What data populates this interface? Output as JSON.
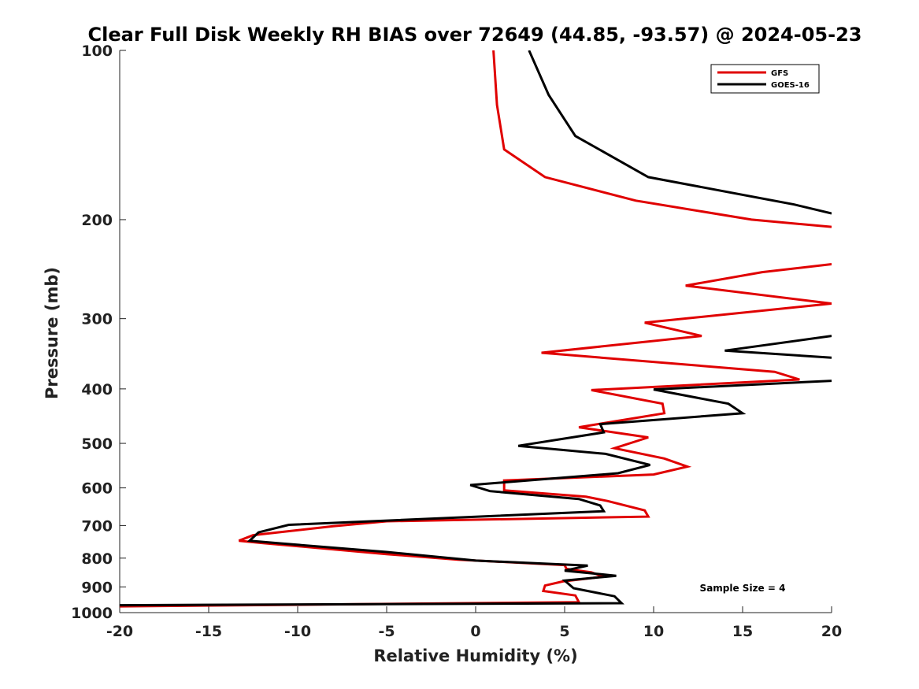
{
  "chart_data": {
    "type": "line",
    "title": "Clear Full Disk Weekly RH BIAS over 72649 (44.85, -93.57) @ 2024-05-23",
    "xlabel": "Relative Humidity (%)",
    "ylabel": "Pressure (mb)",
    "xlim": [
      -20,
      20
    ],
    "ylim": [
      100,
      1000
    ],
    "y_scale": "log",
    "y_reversed": true,
    "grid": false,
    "legend_position": "top-right",
    "x_ticks": [
      -20,
      -15,
      -10,
      -5,
      0,
      5,
      10,
      15,
      20
    ],
    "x_tick_labels": [
      "-20",
      "-15",
      "-10",
      "-5",
      "0",
      "5",
      "10",
      "15",
      "20"
    ],
    "y_ticks": [
      100,
      200,
      300,
      400,
      500,
      600,
      700,
      800,
      900,
      1000
    ],
    "y_tick_labels": [
      "100",
      "200",
      "300",
      "400",
      "500",
      "600",
      "700",
      "800",
      "900",
      "1000"
    ],
    "annotation": "Sample Size = 4",
    "series": [
      {
        "name": "GFS",
        "color": "#e00000",
        "points": [
          [
            1.0,
            100
          ],
          [
            1.2,
            125
          ],
          [
            1.6,
            150
          ],
          [
            3.9,
            168
          ],
          [
            9.0,
            185
          ],
          [
            15.5,
            200
          ],
          [
            20.0,
            206
          ],
          [
            null,
            null
          ],
          [
            20.0,
            240
          ],
          [
            16.1,
            248
          ],
          [
            11.8,
            262
          ],
          [
            20.0,
            282
          ],
          [
            9.5,
            305
          ],
          [
            12.7,
            322
          ],
          [
            3.7,
            345
          ],
          [
            16.8,
            373
          ],
          [
            18.2,
            385
          ],
          [
            6.5,
            402
          ],
          [
            10.5,
            425
          ],
          [
            10.6,
            442
          ],
          [
            5.8,
            468
          ],
          [
            9.7,
            488
          ],
          [
            7.8,
            510
          ],
          [
            10.6,
            532
          ],
          [
            11.9,
            550
          ],
          [
            10.0,
            568
          ],
          [
            1.6,
            582
          ],
          [
            1.6,
            606
          ],
          [
            6.2,
            622
          ],
          [
            7.4,
            633
          ],
          [
            9.5,
            658
          ],
          [
            9.7,
            675
          ],
          [
            -5.0,
            688
          ],
          [
            -8.0,
            702
          ],
          [
            -12.5,
            728
          ],
          [
            -13.3,
            745
          ],
          [
            -12.0,
            752
          ],
          [
            -5.0,
            787
          ],
          [
            -1.0,
            805
          ],
          [
            5.0,
            823
          ],
          [
            5.1,
            836
          ],
          [
            6.5,
            848
          ],
          [
            7.2,
            863
          ],
          [
            4.9,
            880
          ],
          [
            3.9,
            895
          ],
          [
            3.8,
            915
          ],
          [
            5.6,
            932
          ],
          [
            5.8,
            958
          ],
          [
            -20.0,
            975
          ]
        ]
      },
      {
        "name": "GOES-16",
        "color": "#000000",
        "points": [
          [
            3.0,
            100
          ],
          [
            4.1,
            120
          ],
          [
            5.6,
            142
          ],
          [
            9.7,
            168
          ],
          [
            17.9,
            188
          ],
          [
            20.0,
            195
          ],
          [
            null,
            null
          ],
          [
            20.0,
            322
          ],
          [
            14.0,
            342
          ],
          [
            20.0,
            352
          ],
          [
            null,
            null
          ],
          [
            20.0,
            387
          ],
          [
            10.0,
            401
          ],
          [
            14.2,
            425
          ],
          [
            15.0,
            442
          ],
          [
            7.0,
            462
          ],
          [
            7.2,
            478
          ],
          [
            2.4,
            505
          ],
          [
            7.3,
            522
          ],
          [
            9.8,
            546
          ],
          [
            8.0,
            565
          ],
          [
            -0.3,
            593
          ],
          [
            0.8,
            608
          ],
          [
            5.8,
            628
          ],
          [
            7.0,
            645
          ],
          [
            7.2,
            660
          ],
          [
            -10.5,
            698
          ],
          [
            -12.2,
            720
          ],
          [
            -12.7,
            745
          ],
          [
            -11.0,
            753
          ],
          [
            -5.0,
            780
          ],
          [
            0.0,
            808
          ],
          [
            6.3,
            825
          ],
          [
            5.0,
            842
          ],
          [
            7.9,
            860
          ],
          [
            5.0,
            877
          ],
          [
            5.5,
            905
          ],
          [
            7.8,
            935
          ],
          [
            8.2,
            962
          ],
          [
            -20.0,
            970
          ]
        ]
      }
    ]
  }
}
